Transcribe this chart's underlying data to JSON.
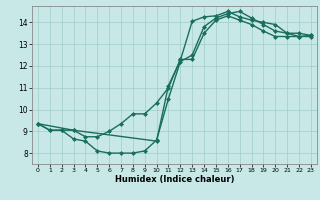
{
  "xlabel": "Humidex (Indice chaleur)",
  "xlim": [
    -0.5,
    23.5
  ],
  "ylim": [
    7.5,
    14.75
  ],
  "xticks": [
    0,
    1,
    2,
    3,
    4,
    5,
    6,
    7,
    8,
    9,
    10,
    11,
    12,
    13,
    14,
    15,
    16,
    17,
    18,
    19,
    20,
    21,
    22,
    23
  ],
  "yticks": [
    8,
    9,
    10,
    11,
    12,
    13,
    14
  ],
  "bg_color": "#c8e8e8",
  "line_color": "#1a6e5e",
  "grid_color": "#a0ccc8",
  "lines": [
    {
      "x": [
        0,
        1,
        2,
        3,
        4,
        5,
        6,
        7,
        8,
        9,
        10,
        11,
        12,
        13,
        14,
        15,
        16,
        17,
        18,
        19,
        20,
        21,
        22,
        23
      ],
      "y": [
        9.35,
        9.05,
        9.05,
        8.65,
        8.55,
        8.1,
        8.0,
        8.0,
        8.0,
        8.1,
        8.6,
        10.5,
        12.2,
        12.5,
        13.8,
        14.2,
        14.4,
        14.5,
        14.2,
        13.9,
        13.6,
        13.5,
        13.35,
        13.35
      ]
    },
    {
      "x": [
        0,
        1,
        2,
        3,
        4,
        5,
        6,
        7,
        8,
        9,
        10,
        11,
        12,
        13,
        14,
        15,
        16,
        17,
        18,
        19,
        20,
        21,
        22,
        23
      ],
      "y": [
        9.35,
        9.05,
        9.05,
        9.05,
        8.75,
        8.75,
        9.0,
        9.35,
        9.8,
        9.8,
        10.3,
        11.0,
        12.3,
        12.3,
        13.5,
        14.1,
        14.3,
        14.1,
        13.9,
        13.6,
        13.35,
        13.35,
        13.35,
        13.4
      ]
    },
    {
      "x": [
        0,
        3,
        10,
        11,
        12,
        13,
        14,
        15,
        16,
        17,
        18,
        19,
        20,
        21,
        22,
        23
      ],
      "y": [
        9.35,
        9.05,
        8.55,
        11.1,
        12.25,
        14.05,
        14.25,
        14.3,
        14.5,
        14.25,
        14.1,
        14.0,
        13.9,
        13.5,
        13.5,
        13.4
      ]
    }
  ],
  "marker": "D",
  "markersize": 2.0,
  "linewidth": 1.0
}
